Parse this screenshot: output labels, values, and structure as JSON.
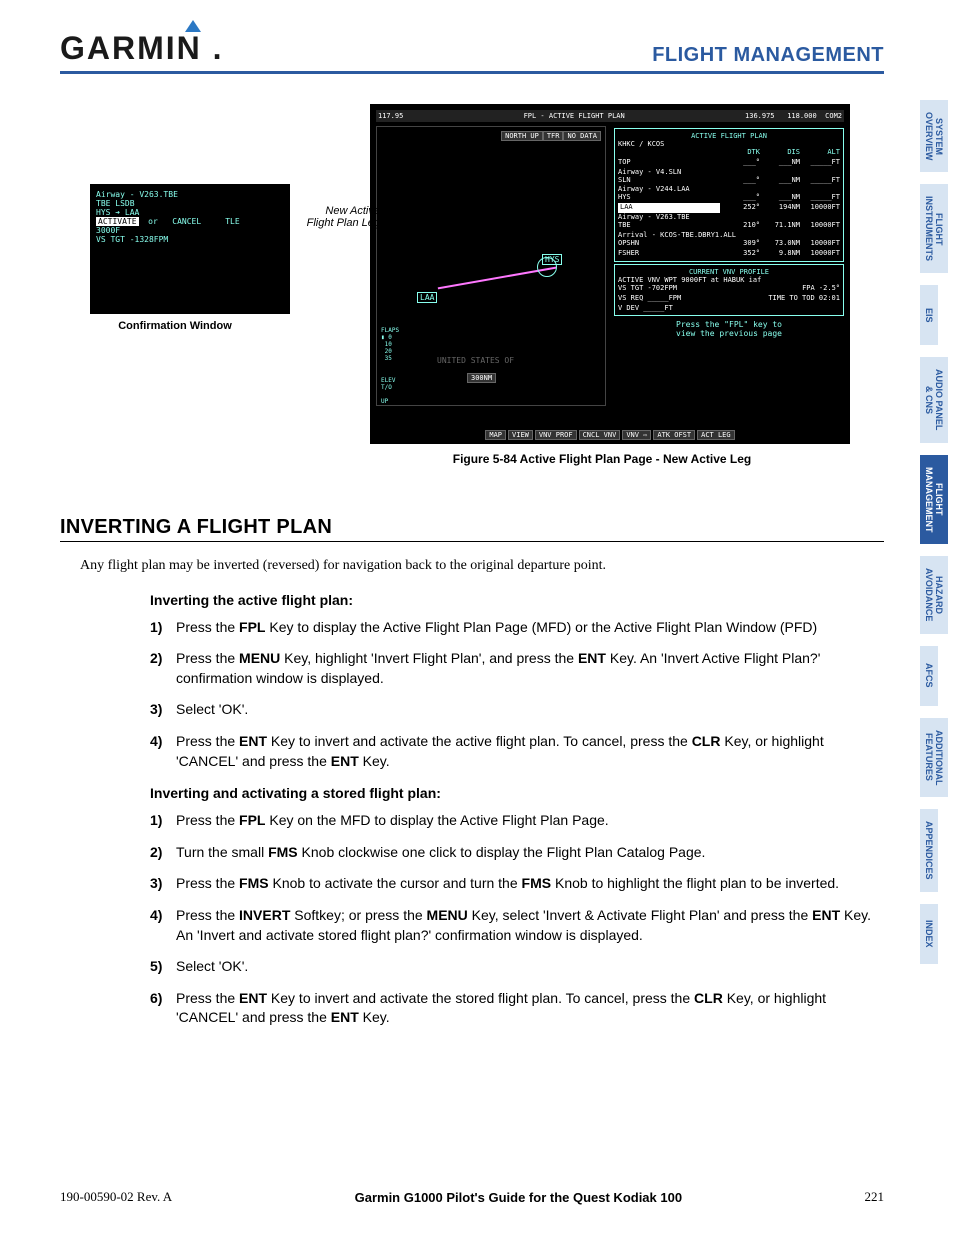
{
  "header": {
    "logo": "GARMIN",
    "section": "FLIGHT MANAGEMENT"
  },
  "tabs": [
    {
      "label": "SYSTEM\nOVERVIEW",
      "active": false
    },
    {
      "label": "FLIGHT\nINSTRUMENTS",
      "active": false
    },
    {
      "label": "EIS",
      "active": false
    },
    {
      "label": "AUDIO PANEL\n& CNS",
      "active": false
    },
    {
      "label": "FLIGHT\nMANAGEMENT",
      "active": true
    },
    {
      "label": "HAZARD\nAVOIDANCE",
      "active": false
    },
    {
      "label": "AFCS",
      "active": false
    },
    {
      "label": "ADDITIONAL\nFEATURES",
      "active": false
    },
    {
      "label": "APPENDICES",
      "active": false
    },
    {
      "label": "INDEX",
      "active": false
    }
  ],
  "fig_small": {
    "lines": [
      "Airway - V263.TBE",
      "TBE                         LSDB",
      "",
      "   HYS ➔ LAA",
      "",
      "ACTIVATE  or   CANCEL     TLE",
      "                         3000F",
      "VS TGT        -1328FPM"
    ],
    "caption": "Confirmation Window"
  },
  "fig_large": {
    "top": {
      "freq1": "117.95",
      "title": "FPL - ACTIVE FLIGHT PLAN",
      "freq2": "136.975",
      "freq3": "118.000",
      "com": "COM2"
    },
    "map_tags": [
      "NORTH UP",
      "TFR",
      "NO DATA"
    ],
    "fp_title": "ACTIVE FLIGHT PLAN",
    "route": "KHKC / KCOS",
    "columns": [
      "DTK",
      "DIS",
      "ALT"
    ],
    "rows": [
      {
        "label": "TOP",
        "dtk": "___°",
        "dis": "___NM",
        "alt": "_____FT"
      },
      {
        "label": "Airway - V4.SLN"
      },
      {
        "label": "SLN",
        "dtk": "___°",
        "dis": "___NM",
        "alt": "_____FT"
      },
      {
        "label": "Airway - V244.LAA"
      },
      {
        "label": "HYS",
        "dtk": "___°",
        "dis": "___NM",
        "alt": "_____FT"
      },
      {
        "label": "LAA",
        "dtk": "252°",
        "dis": "194NM",
        "alt": "10000FT",
        "hl": true
      },
      {
        "label": "Airway - V263.TBE"
      },
      {
        "label": "TBE",
        "dtk": "210°",
        "dis": "71.1NM",
        "alt": "10000FT"
      },
      {
        "label": "Arrival - KCOS-TBE.DBRY1.ALL"
      },
      {
        "label": "OPSHN",
        "dtk": "309°",
        "dis": "73.0NM",
        "alt": "10000FT"
      },
      {
        "label": "FSHER",
        "dtk": "352°",
        "dis": "9.8NM",
        "alt": "10000FT"
      }
    ],
    "vnv": {
      "title": "CURRENT VNV PROFILE",
      "l1": "ACTIVE VNV WPT  9000FT  at  HABUK iaf",
      "l2a": "VS TGT    -702FPM",
      "l2b": "FPA        -2.5°",
      "l3a": "VS REQ   _____FPM",
      "l3b": "TIME TO TOD  02:01",
      "l4": "V DEV  _____FT"
    },
    "hint": "Press the \"FPL\" key to\nview the previous page",
    "bottom_btns": [
      "MAP",
      "VIEW",
      "VNV PROF",
      "CNCL VNV",
      "VNV ⇨",
      "ATK OFST",
      "ACT LEG"
    ],
    "scale": "300NM",
    "map_text": "UNITED STATES OF",
    "leg_label": "New Active\nFlight Plan Leg",
    "waypoints": [
      "HYS",
      "LAA"
    ],
    "caption": "Figure 5-84  Active Flight Plan Page - New Active Leg"
  },
  "section": {
    "heading": "INVERTING A FLIGHT PLAN",
    "intro": "Any flight plan may be inverted (reversed) for navigation back to the original departure point.",
    "sub1": "Inverting the active flight plan:",
    "steps1": [
      {
        "n": "1)",
        "pre": "Press the ",
        "k1": "FPL",
        "post": " Key to display the Active Flight Plan Page (MFD) or the Active Flight Plan Window (PFD)"
      },
      {
        "n": "2)",
        "pre": "Press the ",
        "k1": "MENU",
        "mid": " Key, highlight 'Invert Flight Plan', and press the ",
        "k2": "ENT",
        "post": " Key.  An 'Invert Active Flight Plan?' confirmation window is displayed."
      },
      {
        "n": "3)",
        "pre": "Select 'OK'."
      },
      {
        "n": "4)",
        "pre": "Press the ",
        "k1": "ENT",
        "mid": " Key to invert and activate the active flight plan.  To cancel, press the ",
        "k2": "CLR",
        "mid2": " Key, or highlight 'CANCEL' and press the ",
        "k3": "ENT",
        "post": " Key."
      }
    ],
    "sub2": "Inverting and activating a stored flight plan:",
    "steps2": [
      {
        "n": "1)",
        "pre": "Press the ",
        "k1": "FPL",
        "post": " Key on the MFD to display the Active Flight Plan Page."
      },
      {
        "n": "2)",
        "pre": "Turn the small ",
        "k1": "FMS",
        "post": " Knob clockwise one click to display the Flight Plan Catalog Page."
      },
      {
        "n": "3)",
        "pre": "Press the ",
        "k1": "FMS",
        "mid": " Knob to activate the cursor and turn the ",
        "k2": "FMS",
        "post": " Knob to highlight the flight plan to be inverted."
      },
      {
        "n": "4)",
        "pre": "Press the ",
        "k1": "INVERT",
        "mid": " Softkey; or press the ",
        "k2": "MENU",
        "mid2": " Key, select 'Invert & Activate Flight Plan' and press the ",
        "k3": "ENT",
        "post": " Key. An 'Invert and activate stored flight plan?' confirmation window is displayed."
      },
      {
        "n": "5)",
        "pre": "Select 'OK'."
      },
      {
        "n": "6)",
        "pre": "Press the ",
        "k1": "ENT",
        "mid": " Key to invert and activate the stored flight plan.  To cancel, press the ",
        "k2": "CLR",
        "mid2": " Key, or highlight 'CANCEL' and press the ",
        "k3": "ENT",
        "post": " Key."
      }
    ]
  },
  "footer": {
    "doc": "190-00590-02  Rev. A",
    "guide": "Garmin G1000 Pilot's Guide for the Quest Kodiak 100",
    "page": "221"
  }
}
